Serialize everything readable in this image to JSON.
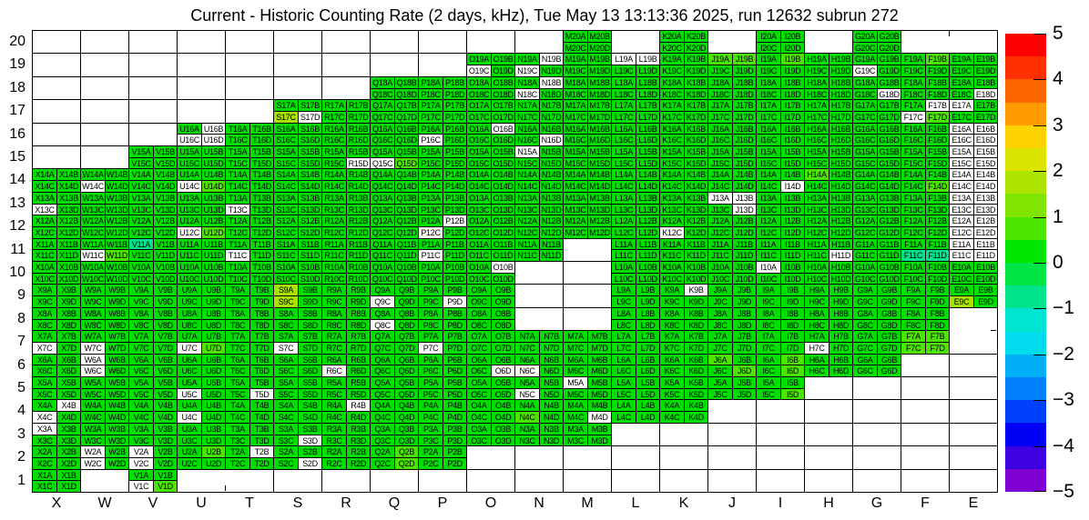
{
  "title": "Current - Historic Counting Rate (2 days, kHz), Tue May 13 13:13:36 2025, run 12632 subrun 272",
  "chart_data": {
    "type": "heatmap",
    "title": "Current - Historic Counting Rate (2 days, kHz), Tue May 13 13:13:36 2025, run 12632 subrun 272",
    "x_categories": [
      "X",
      "W",
      "V",
      "U",
      "T",
      "S",
      "R",
      "Q",
      "P",
      "O",
      "N",
      "M",
      "L",
      "K",
      "J",
      "I",
      "H",
      "G",
      "F",
      "E"
    ],
    "y_categories": [
      20,
      19,
      18,
      17,
      16,
      15,
      14,
      13,
      12,
      11,
      10,
      9,
      8,
      7,
      6,
      5,
      4,
      3,
      2,
      1
    ],
    "cell_suffixes": [
      "A",
      "B",
      "C",
      "D"
    ],
    "legend_position": "right",
    "colorbar": {
      "min": -5,
      "max": 5,
      "tick_labels": [
        "5",
        "4",
        "3",
        "2",
        "1",
        "0",
        "−1",
        "−2",
        "−3",
        "−4",
        "−5"
      ],
      "segment_colors": [
        "#FF0000",
        "#FF3000",
        "#FF6600",
        "#FF9C00",
        "#FFD300",
        "#DBE500",
        "#ADE500",
        "#7FE500",
        "#4CE500",
        "#00E500",
        "#00E546",
        "#00E58C",
        "#00E5D2",
        "#00DCED",
        "#00AFF5",
        "#007FFF",
        "#0040FF",
        "#0000F5",
        "#3D00E0",
        "#7F00D2"
      ]
    },
    "value_palette": {
      "g": {
        "color": "#00DF00",
        "approx_value": 0
      },
      "b": {
        "color": "#4CE500",
        "approx_value": 0.7
      },
      "y": {
        "color": "#A8E200",
        "approx_value": 1.6
      },
      "m": {
        "color": "#00E58C",
        "approx_value": -0.8
      },
      "w": {
        "color": "#FFFFFF",
        "approx_value": null
      }
    },
    "empty_module_code": "box",
    "cells": {
      "20": {
        "X": "box",
        "W": "box",
        "V": "box",
        "U": "box",
        "T": "box",
        "S": "box",
        "R": "box",
        "Q": "box",
        "P": "box",
        "O": "box",
        "N": "box",
        "M": "gggg",
        "K": "gggg",
        "I": "gggg",
        "G": "gggg"
      },
      "19": {
        "X": "box",
        "W": "box",
        "V": "box",
        "U": "box",
        "T": "box",
        "S": "box",
        "R": "box",
        "Q": "box",
        "P": "box",
        "O": "ggwg",
        "N": "gwwg",
        "M": "gggg",
        "L": "wwgg",
        "K": "gggg",
        "J": "bbgg",
        "I": "gbgg",
        "H": "gggg",
        "G": "ggwg",
        "F": "gbgg",
        "E": "gggg"
      },
      "18": {
        "X": "box",
        "W": "box",
        "V": "box",
        "U": "box",
        "T": "box",
        "S": "box",
        "R": "box",
        "Q": "gggg",
        "P": "gggg",
        "O": "gggg",
        "N": "gwwg",
        "M": "gggg",
        "L": "gggg",
        "K": "gggg",
        "J": "gggg",
        "I": "gggg",
        "H": "gggg",
        "G": "gggw",
        "F": "gggg",
        "E": "gggw"
      },
      "17": {
        "X": "box",
        "W": "box",
        "V": "box",
        "U": "box",
        "T": "box",
        "S": "ggyw",
        "R": "gggg",
        "Q": "gggg",
        "P": "gggg",
        "O": "gggg",
        "N": "gggg",
        "M": "gggg",
        "L": "gggg",
        "K": "gggg",
        "J": "gggg",
        "I": "gggg",
        "H": "gggg",
        "G": "gggg",
        "F": "gwwb",
        "E": "wggg"
      },
      "16": {
        "X": "box",
        "W": "box",
        "V": "box",
        "U": "gwww",
        "T": "gggg",
        "S": "gggg",
        "R": "gggg",
        "Q": "gggg",
        "P": "ggwg",
        "O": "gwgg",
        "N": "gggw",
        "M": "gggg",
        "L": "gggg",
        "K": "gggg",
        "J": "gggg",
        "I": "gggg",
        "H": "gggg",
        "G": "gggg",
        "F": "gggg",
        "E": "wwww"
      },
      "15": {
        "X": "box",
        "W": "box",
        "V": "gggg",
        "U": "gggg",
        "T": "gggg",
        "S": "gggg",
        "R": "gggw",
        "Q": "ggwb",
        "P": "gggg",
        "O": "gggg",
        "N": "wggg",
        "M": "gggg",
        "L": "gggg",
        "K": "gggg",
        "J": "gggg",
        "I": "gggg",
        "H": "gggg",
        "G": "gggg",
        "F": "gggg",
        "E": "wwww"
      },
      "14": {
        "X": "gggg",
        "W": "ggwg",
        "V": "gggg",
        "U": "ggwb",
        "T": "gggg",
        "S": "gggg",
        "R": "gggg",
        "Q": "gggg",
        "P": "gggg",
        "O": "gggg",
        "N": "gggg",
        "M": "gggg",
        "L": "gggg",
        "K": "gggg",
        "J": "gggg",
        "I": "gggw",
        "H": "bggg",
        "G": "gggg",
        "F": "gggb",
        "E": "wwww"
      },
      "13": {
        "X": "ggwg",
        "W": "gggg",
        "V": "gggg",
        "U": "gggg",
        "T": "ggwg",
        "S": "gggg",
        "R": "gggg",
        "Q": "gggg",
        "P": "gggg",
        "O": "gggg",
        "N": "gggg",
        "M": "gggg",
        "L": "gggg",
        "K": "gggg",
        "J": "wwgw",
        "I": "gggg",
        "H": "gggg",
        "G": "gggg",
        "F": "gggg",
        "E": "wwww"
      },
      "12": {
        "X": "gggg",
        "W": "gggg",
        "V": "gggg",
        "U": "ggwb",
        "T": "gggg",
        "S": "gggg",
        "R": "gggg",
        "Q": "gggg",
        "P": "gwwg",
        "O": "gggg",
        "N": "gggg",
        "M": "gggg",
        "L": "gggg",
        "K": "ggwg",
        "J": "gggg",
        "I": "gggg",
        "H": "gggg",
        "G": "gggg",
        "F": "gggg",
        "E": "wwww"
      },
      "11": {
        "X": "gggg",
        "W": "ggwb",
        "V": "mggg",
        "U": "gggg",
        "T": "ggwg",
        "S": "gggg",
        "R": "gggg",
        "Q": "gggg",
        "P": "ggwg",
        "O": "gggg",
        "N": "gggg",
        "M": "box",
        "L": "gggg",
        "K": "gggg",
        "J": "gggg",
        "I": "gggg",
        "H": "gggw",
        "G": "gggg",
        "F": "ggmm",
        "E": "wwww"
      },
      "10": {
        "X": "gggg",
        "W": "gggg",
        "V": "gggg",
        "U": "gggg",
        "T": "gggg",
        "S": "gggg",
        "R": "gggg",
        "Q": "gggg",
        "P": "gggg",
        "O": "gwgg",
        "N": "box",
        "M": "box",
        "L": "gggg",
        "K": "gggg",
        "J": "gggg",
        "I": "wggg",
        "H": "gggg",
        "G": "gggg",
        "F": "gggg",
        "E": "gggg"
      },
      "9": {
        "X": "gggg",
        "W": "gggg",
        "V": "gggg",
        "U": "gggg",
        "T": "gggg",
        "S": "ygyg",
        "R": "gggg",
        "Q": "ggwg",
        "P": "gggw",
        "O": "gggg",
        "N": "box",
        "M": "box",
        "L": "gggg",
        "K": "gwgg",
        "J": "gggg",
        "I": "gggg",
        "H": "gggg",
        "G": "gggg",
        "F": "gggg",
        "E": "ggyg"
      },
      "8": {
        "X": "gggg",
        "W": "gggg",
        "V": "gggg",
        "U": "gggg",
        "T": "gggg",
        "S": "gggg",
        "R": "gggg",
        "Q": "ggwg",
        "P": "gggg",
        "O": "gggg",
        "N": "box",
        "M": "box",
        "L": "gggg",
        "K": "gggg",
        "J": "gggg",
        "I": "gggg",
        "H": "gggg",
        "G": "gggg",
        "F": "gggg"
      },
      "7": {
        "X": "ggwg",
        "W": "ggwg",
        "V": "gggg",
        "U": "ggwb",
        "T": "gggg",
        "S": "ggwg",
        "R": "gggg",
        "Q": "gggg",
        "P": "ggwg",
        "O": "gggg",
        "N": "gggg",
        "M": "gggg",
        "L": "gggg",
        "K": "gggg",
        "J": "gggg",
        "I": "gggg",
        "H": "ggwg",
        "G": "gggg",
        "F": "bbbb"
      },
      "6": {
        "X": "gggg",
        "W": "wgwg",
        "V": "gggg",
        "U": "gggg",
        "T": "gggg",
        "S": "gggg",
        "R": "ggwg",
        "Q": "gggg",
        "P": "gggg",
        "O": "gggw",
        "N": "ggwg",
        "M": "gggg",
        "L": "gggg",
        "K": "gggg",
        "J": "bggb",
        "I": "gbgb",
        "H": "gggg",
        "G": "gggg",
        "F": "box",
        "E": "box"
      },
      "5": {
        "X": "gggg",
        "W": "gggg",
        "V": "gggg",
        "U": "ggwg",
        "T": "gggw",
        "S": "gggg",
        "R": "gggg",
        "Q": "gggg",
        "P": "gggg",
        "O": "gggg",
        "N": "ggwg",
        "M": "wggg",
        "L": "gggg",
        "K": "gggg",
        "J": "gggg",
        "I": "gggb",
        "H": "box",
        "G": "box",
        "F": "box",
        "E": "box"
      },
      "4": {
        "X": "gwwg",
        "W": "gggg",
        "V": "gggg",
        "U": "ggwg",
        "T": "gggg",
        "S": "gggg",
        "R": "gwgg",
        "Q": "gggg",
        "P": "gggg",
        "O": "gggg",
        "N": "ggbg",
        "M": "gggw",
        "L": "gggg",
        "K": "gggg",
        "J": "box",
        "I": "box",
        "H": "box",
        "G": "box",
        "F": "box",
        "E": "box"
      },
      "3": {
        "X": "wggg",
        "W": "gggg",
        "V": "gggg",
        "U": "gggg",
        "T": "gggg",
        "S": "gggw",
        "R": "gggg",
        "Q": "gggg",
        "P": "gggg",
        "O": "gggg",
        "N": "gggg",
        "M": "gggg",
        "L": "box",
        "K": "box",
        "J": "box",
        "I": "box",
        "H": "box",
        "G": "box",
        "F": "box",
        "E": "box"
      },
      "2": {
        "X": "gggg",
        "W": "wgwg",
        "V": "wgwg",
        "U": "gbgg",
        "T": "gwgg",
        "S": "gggw",
        "R": "gggg",
        "Q": "gbgb",
        "P": "gggg",
        "O": "box",
        "N": "box",
        "M": "box",
        "L": "box",
        "K": "box",
        "J": "box",
        "I": "box",
        "H": "box",
        "G": "box",
        "F": "box",
        "E": "box"
      },
      "1": {
        "X": "gggg",
        "V": "ggwb",
        "S": "box",
        "R": "box",
        "Q": "box",
        "P": "box",
        "O": "box",
        "N": "box",
        "M": "box",
        "L": "box",
        "K": "box",
        "J": "box",
        "I": "box",
        "H": "box",
        "G": "box",
        "F": "box",
        "E": "box"
      }
    }
  }
}
